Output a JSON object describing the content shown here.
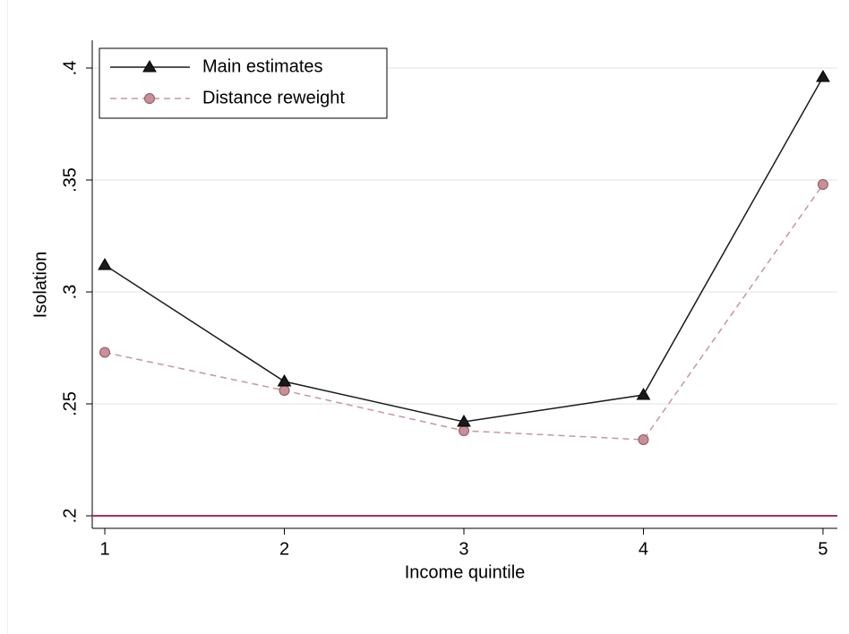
{
  "chart_data": {
    "type": "line",
    "xlabel": "Income quintile",
    "ylabel": "Isolation",
    "x": [
      1,
      2,
      3,
      4,
      5
    ],
    "series": [
      {
        "name": "Main estimates",
        "color": "#1a1a1a",
        "marker": "triangle",
        "dash": false,
        "values": [
          0.312,
          0.26,
          0.242,
          0.254,
          0.396
        ]
      },
      {
        "name": "Distance reweight",
        "color": "#c8959c",
        "marker": "circle",
        "dash": true,
        "values": [
          0.273,
          0.256,
          0.238,
          0.234,
          0.348
        ]
      }
    ],
    "hline": 0.2,
    "hline_color": "#b0305a",
    "xlim": [
      0.93,
      5.08
    ],
    "xticks": [
      1,
      2,
      3,
      4,
      5
    ],
    "ylim": [
      0.1944,
      0.4124
    ],
    "yticks": [
      {
        "value": 0.2,
        "label": ".2"
      },
      {
        "value": 0.25,
        "label": ".25"
      },
      {
        "value": 0.3,
        "label": ".3"
      },
      {
        "value": 0.35,
        "label": ".35"
      },
      {
        "value": 0.4,
        "label": ".4"
      }
    ],
    "grid": true,
    "legend": "top-left"
  }
}
